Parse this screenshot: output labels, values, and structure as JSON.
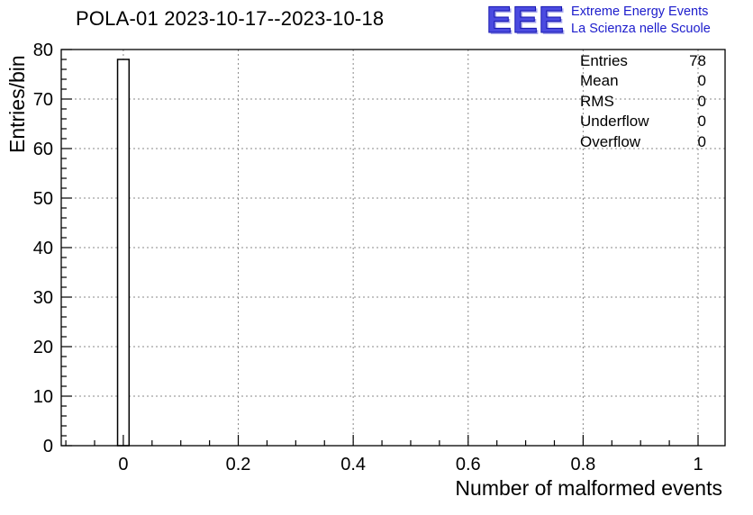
{
  "title": "POLA-01 2023-10-17--2023-10-18",
  "logo": {
    "text": "EEE",
    "line1": "Extreme Energy Events",
    "line2": "La Scienza nelle Scuole",
    "color": "#1c1ccc"
  },
  "stats": {
    "rows": [
      {
        "label": "Entries",
        "value": "78"
      },
      {
        "label": "Mean",
        "value": "0"
      },
      {
        "label": "RMS",
        "value": "0"
      },
      {
        "label": "Underflow",
        "value": "0"
      },
      {
        "label": "Overflow",
        "value": "0"
      }
    ]
  },
  "chart_data": {
    "type": "bar",
    "title": "POLA-01 2023-10-17--2023-10-18",
    "xlabel": "Number of malformed events",
    "ylabel": "Entries/bin",
    "bins": [
      {
        "x": 0,
        "width": 0.02,
        "count": 78
      }
    ],
    "entries": 78,
    "mean": 0,
    "rms": 0,
    "underflow": 0,
    "overflow": 0,
    "xlim": [
      -0.108,
      1.047
    ],
    "ylim": [
      0,
      80
    ],
    "xticks": [
      {
        "v": 0,
        "label": "0"
      },
      {
        "v": 0.2,
        "label": "0.2"
      },
      {
        "v": 0.4,
        "label": "0.4"
      },
      {
        "v": 0.6,
        "label": "0.6"
      },
      {
        "v": 0.8,
        "label": "0.8"
      },
      {
        "v": 1,
        "label": "1"
      }
    ],
    "yticks": [
      {
        "v": 0,
        "label": "0"
      },
      {
        "v": 10,
        "label": "10"
      },
      {
        "v": 20,
        "label": "20"
      },
      {
        "v": 30,
        "label": "30"
      },
      {
        "v": 40,
        "label": "40"
      },
      {
        "v": 50,
        "label": "50"
      },
      {
        "v": 60,
        "label": "60"
      },
      {
        "v": 70,
        "label": "70"
      },
      {
        "v": 80,
        "label": "80"
      }
    ],
    "x_minor_step": 0.05,
    "y_minor_step": 2,
    "grid": true,
    "legend": "none"
  }
}
